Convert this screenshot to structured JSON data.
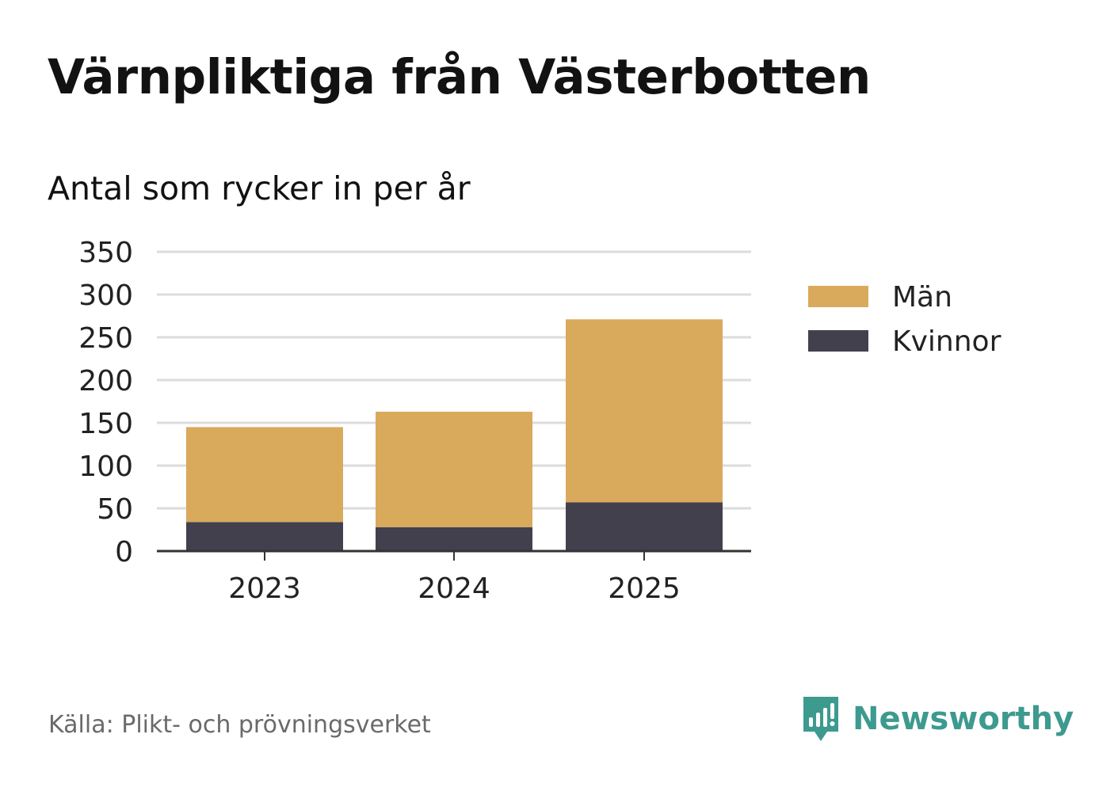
{
  "title": "Värnpliktiga från Västerbotten",
  "subtitle": "Antal som rycker in per år",
  "source": "Källa: Plikt- och prövningsverket",
  "brand": {
    "name": "Newsworthy",
    "icon": "newsworthy-logo-icon",
    "color": "#3d9a8f"
  },
  "colors": {
    "man": "#d9aa5c",
    "kvinnor": "#43404e",
    "grid": "#dcdcdc",
    "axis": "#333333"
  },
  "chart_data": {
    "type": "bar",
    "stacked": true,
    "title": "Värnpliktiga från Västerbotten",
    "subtitle": "Antal som rycker in per år",
    "xlabel": "",
    "ylabel": "",
    "categories": [
      "2023",
      "2024",
      "2025"
    ],
    "series": [
      {
        "name": "Kvinnor",
        "values": [
          34,
          28,
          57
        ]
      },
      {
        "name": "Män",
        "values": [
          111,
          135,
          214
        ]
      }
    ],
    "legend_order": [
      "Män",
      "Kvinnor"
    ],
    "ylim": [
      0,
      350
    ],
    "yticks": [
      0,
      50,
      100,
      150,
      200,
      250,
      300,
      350
    ],
    "grid": true,
    "legend_position": "right"
  }
}
